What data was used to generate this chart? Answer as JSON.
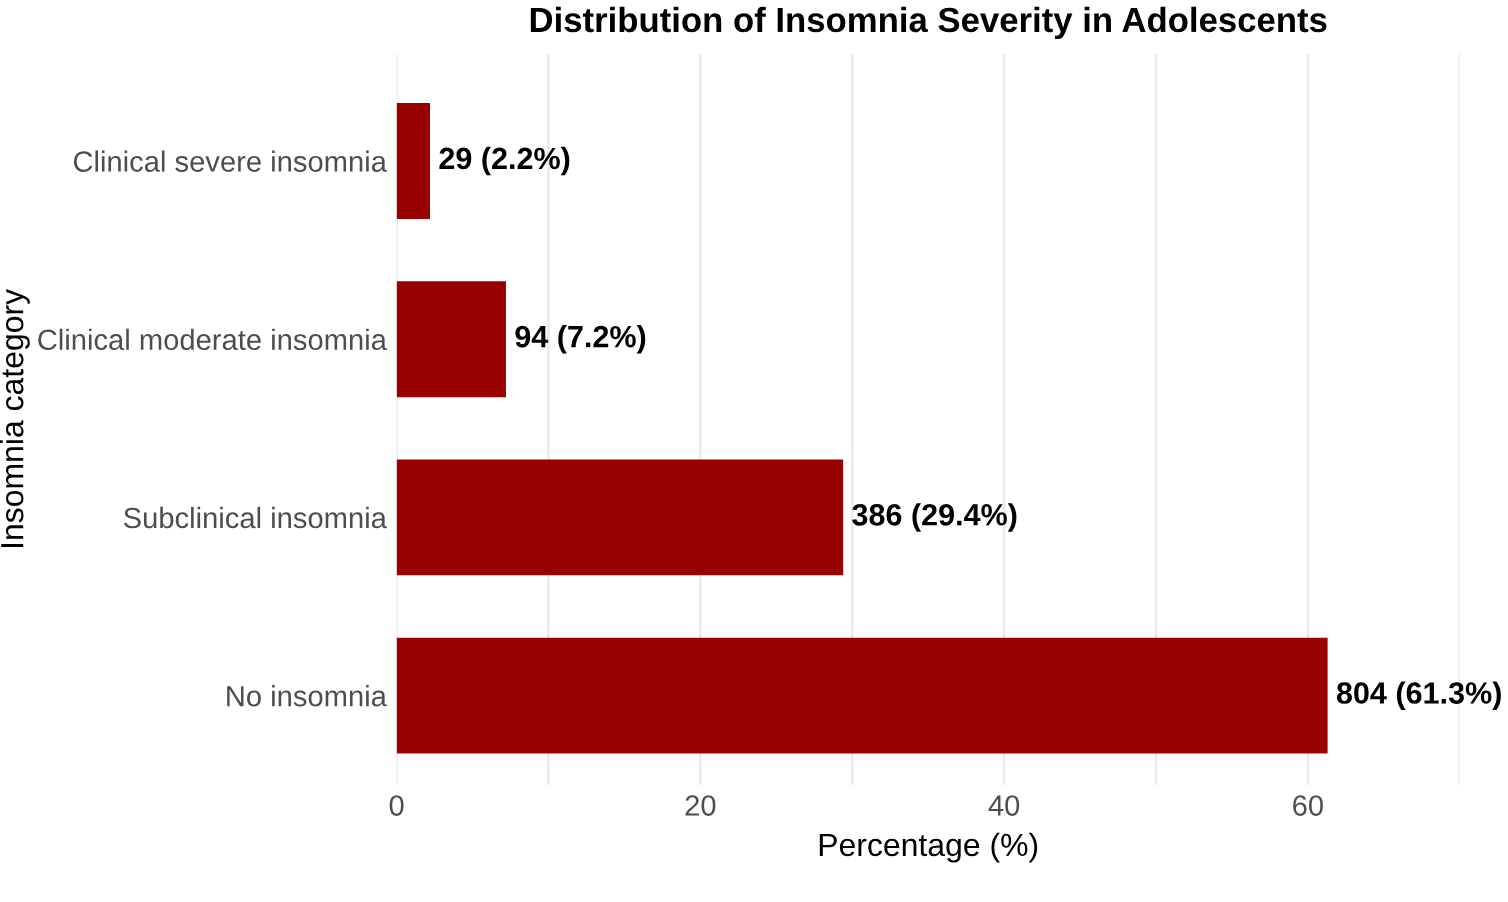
{
  "chart_data": {
    "type": "bar",
    "orientation": "horizontal",
    "title": "Distribution of Insomnia Severity in Adolescents",
    "xlabel": "Percentage (%)",
    "ylabel": "Insomnia category",
    "categories": [
      "Clinical severe insomnia",
      "Clinical moderate insomnia",
      "Subclinical insomnia",
      "No insomnia"
    ],
    "values": [
      2.2,
      7.2,
      29.4,
      61.3
    ],
    "value_labels": [
      "29 (2.2%)",
      "94 (7.2%)",
      "386 (29.4%)",
      "804 (61.3%)"
    ],
    "color": "#990000",
    "xlim": [
      0,
      70
    ],
    "xticks": [
      0,
      {
        "value": 10,
        "label": null
      },
      20,
      {
        "value": 30,
        "label": null
      },
      40,
      {
        "value": 50,
        "label": null
      },
      60,
      {
        "value": 70,
        "label": null
      }
    ],
    "grid": "x",
    "legend": false
  }
}
